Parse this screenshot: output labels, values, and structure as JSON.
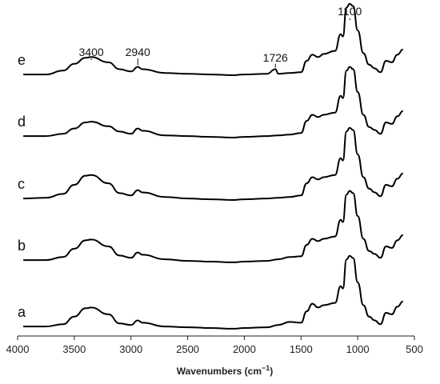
{
  "chart_data": {
    "type": "line",
    "title": "",
    "xlabel": "Wavenumbers (cm",
    "xlabel_sup": "−1",
    "xlabel_end": ")",
    "ylabel": "",
    "xlim": [
      4000,
      500
    ],
    "x_reversed": true,
    "xticks": [
      4000,
      3500,
      3000,
      2500,
      2000,
      1500,
      1000,
      500
    ],
    "grid": false,
    "legend": "none",
    "series": [
      {
        "name": "a",
        "x": [
          3950,
          3750,
          3600,
          3500,
          3400,
          3350,
          3200,
          3100,
          3000,
          2940,
          2900,
          2700,
          2500,
          2300,
          2100,
          2000,
          1800,
          1700,
          1600,
          1500,
          1450,
          1400,
          1350,
          1300,
          1200,
          1150,
          1130,
          1100,
          1070,
          1040,
          1000,
          950,
          900,
          850,
          800,
          750,
          700,
          650,
          600
        ],
        "y": [
          0.02,
          0.02,
          0.05,
          0.15,
          0.26,
          0.27,
          0.18,
          0.06,
          0.04,
          0.1,
          0.07,
          0.02,
          0.01,
          0.0,
          -0.01,
          0.0,
          0.01,
          0.04,
          0.08,
          0.07,
          0.22,
          0.32,
          0.27,
          0.3,
          0.33,
          0.55,
          0.52,
          0.9,
          0.95,
          0.92,
          0.6,
          0.3,
          0.15,
          0.1,
          0.05,
          0.2,
          0.18,
          0.28,
          0.35
        ]
      },
      {
        "name": "b",
        "x": [
          3950,
          3750,
          3600,
          3500,
          3400,
          3350,
          3200,
          3100,
          3000,
          2940,
          2900,
          2700,
          2500,
          2300,
          2100,
          2000,
          1800,
          1700,
          1600,
          1500,
          1450,
          1400,
          1350,
          1300,
          1200,
          1150,
          1130,
          1100,
          1070,
          1040,
          1000,
          950,
          900,
          850,
          800,
          750,
          700,
          650,
          600
        ],
        "y": [
          0.02,
          0.02,
          0.06,
          0.17,
          0.28,
          0.29,
          0.2,
          0.08,
          0.05,
          0.12,
          0.09,
          0.03,
          0.01,
          0.0,
          -0.01,
          0.0,
          0.01,
          0.03,
          0.06,
          0.07,
          0.22,
          0.3,
          0.27,
          0.3,
          0.33,
          0.55,
          0.52,
          0.88,
          0.93,
          0.9,
          0.6,
          0.3,
          0.14,
          0.1,
          0.05,
          0.2,
          0.18,
          0.28,
          0.35
        ]
      },
      {
        "name": "c",
        "x": [
          3950,
          3750,
          3600,
          3500,
          3400,
          3350,
          3200,
          3100,
          3000,
          2940,
          2900,
          2700,
          2500,
          2300,
          2100,
          2000,
          1800,
          1700,
          1600,
          1500,
          1450,
          1400,
          1350,
          1300,
          1200,
          1150,
          1130,
          1100,
          1070,
          1040,
          1000,
          950,
          900,
          850,
          800,
          750,
          700,
          650,
          600
        ],
        "y": [
          0.02,
          0.03,
          0.08,
          0.2,
          0.32,
          0.33,
          0.22,
          0.09,
          0.06,
          0.13,
          0.1,
          0.04,
          0.02,
          0.01,
          0.0,
          0.01,
          0.02,
          0.03,
          0.04,
          0.06,
          0.22,
          0.3,
          0.27,
          0.3,
          0.33,
          0.55,
          0.52,
          0.9,
          0.95,
          0.92,
          0.6,
          0.3,
          0.15,
          0.1,
          0.05,
          0.2,
          0.18,
          0.28,
          0.35
        ]
      },
      {
        "name": "d",
        "x": [
          3950,
          3750,
          3600,
          3500,
          3400,
          3350,
          3200,
          3100,
          3000,
          2940,
          2900,
          2700,
          2500,
          2300,
          2100,
          2000,
          1800,
          1700,
          1600,
          1500,
          1450,
          1400,
          1350,
          1300,
          1200,
          1150,
          1130,
          1100,
          1070,
          1040,
          1000,
          950,
          900,
          850,
          800,
          750,
          700,
          650,
          600
        ],
        "y": [
          0.02,
          0.02,
          0.05,
          0.12,
          0.2,
          0.21,
          0.15,
          0.08,
          0.05,
          0.12,
          0.09,
          0.03,
          0.02,
          0.01,
          0.0,
          0.01,
          0.02,
          0.03,
          0.04,
          0.06,
          0.22,
          0.3,
          0.27,
          0.3,
          0.33,
          0.55,
          0.52,
          0.88,
          0.93,
          0.9,
          0.6,
          0.3,
          0.14,
          0.1,
          0.05,
          0.2,
          0.18,
          0.28,
          0.35
        ]
      },
      {
        "name": "e",
        "x": [
          3950,
          3750,
          3600,
          3500,
          3400,
          3350,
          3200,
          3100,
          3000,
          2940,
          2900,
          2700,
          2500,
          2300,
          2100,
          2000,
          1800,
          1726,
          1700,
          1600,
          1500,
          1450,
          1400,
          1350,
          1300,
          1200,
          1150,
          1130,
          1100,
          1070,
          1040,
          1000,
          950,
          900,
          850,
          800,
          750,
          700,
          650,
          600
        ],
        "y": [
          0.02,
          0.02,
          0.07,
          0.16,
          0.24,
          0.25,
          0.18,
          0.09,
          0.06,
          0.12,
          0.09,
          0.04,
          0.03,
          0.02,
          0.01,
          0.02,
          0.03,
          0.09,
          0.03,
          0.04,
          0.05,
          0.2,
          0.28,
          0.25,
          0.29,
          0.33,
          0.55,
          0.52,
          0.9,
          0.95,
          0.92,
          0.6,
          0.3,
          0.15,
          0.1,
          0.05,
          0.2,
          0.18,
          0.28,
          0.35
        ]
      }
    ],
    "annotations": [
      {
        "text": "3400",
        "x": 3350,
        "series": "e"
      },
      {
        "text": "2940",
        "x": 2940,
        "series": "e"
      },
      {
        "text": "1726",
        "x": 1726,
        "series": "e"
      },
      {
        "text": "1100",
        "x": 1070,
        "series": "e"
      }
    ]
  }
}
